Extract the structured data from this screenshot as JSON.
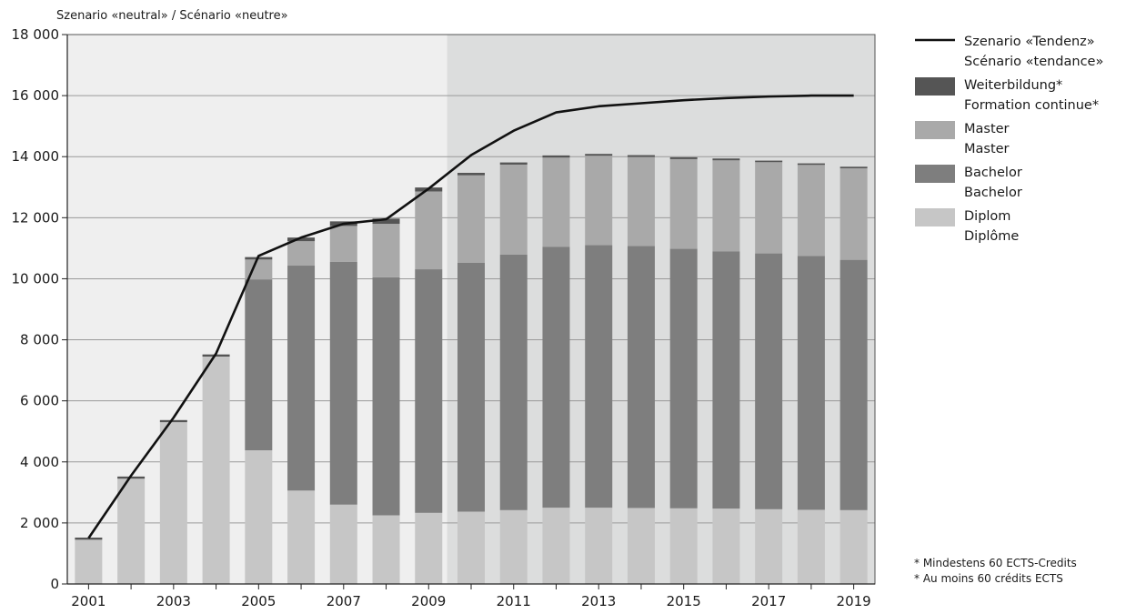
{
  "chart_data": {
    "type": "bar",
    "title": "Szenario «neutral» / Scénario «neutre»",
    "categories": [
      "2001",
      "2002",
      "2003",
      "2004",
      "2005",
      "2006",
      "2007",
      "2008",
      "2009",
      "2010",
      "2011",
      "2012",
      "2013",
      "2014",
      "2015",
      "2016",
      "2017",
      "2018",
      "2019"
    ],
    "x_tick_labels": [
      "2001",
      "2003",
      "2005",
      "2007",
      "2009",
      "2011",
      "2013",
      "2015",
      "2017",
      "2019"
    ],
    "ylim": [
      0,
      18000
    ],
    "y_ticks": [
      0,
      2000,
      4000,
      6000,
      8000,
      10000,
      12000,
      14000,
      16000,
      18000
    ],
    "y_tick_labels": [
      "0",
      "2 000",
      "4 000",
      "6 000",
      "8 000",
      "10 000",
      "12 000",
      "14 000",
      "16 000",
      "18 000"
    ],
    "grid": true,
    "legend_position": "right",
    "shaded_region": {
      "from_category": "2010",
      "to_category": "2019",
      "color": "#dcdddd"
    },
    "stacked": true,
    "series": [
      {
        "name_de": "Diplom",
        "name_fr": "Diplôme",
        "color": "#c6c6c6",
        "values": [
          1450,
          3450,
          5300,
          7450,
          4380,
          3060,
          2600,
          2250,
          2330,
          2370,
          2420,
          2500,
          2500,
          2490,
          2480,
          2470,
          2450,
          2430,
          2420
        ]
      },
      {
        "name_de": "Bachelor",
        "name_fr": "Bachelor",
        "color": "#7e7e7e",
        "values": [
          0,
          0,
          0,
          0,
          5600,
          7370,
          7950,
          7800,
          7980,
          8150,
          8370,
          8550,
          8600,
          8580,
          8500,
          8430,
          8380,
          8320,
          8200
        ]
      },
      {
        "name_de": "Master",
        "name_fr": "Master",
        "color": "#a9a9a9",
        "values": [
          0,
          0,
          0,
          0,
          650,
          800,
          1180,
          1750,
          2550,
          2870,
          2950,
          2920,
          2930,
          2920,
          2940,
          2980,
          2990,
          2980,
          3000
        ]
      },
      {
        "name_de": "Weiterbildung*",
        "name_fr": "Formation continue*",
        "color": "#555555",
        "values": [
          70,
          70,
          70,
          70,
          80,
          120,
          150,
          170,
          130,
          80,
          70,
          70,
          60,
          60,
          60,
          60,
          50,
          50,
          50
        ]
      }
    ],
    "line_series": {
      "name_de": "Szenario «Tendenz»",
      "name_fr": "Scénario «tendance»",
      "color": "#111111",
      "values": [
        1500,
        3550,
        5450,
        7550,
        10750,
        11350,
        11800,
        11950,
        12950,
        14050,
        14850,
        15450,
        15650,
        15750,
        15850,
        15920,
        15970,
        16000,
        16000
      ]
    },
    "footnotes": [
      "* Mindestens 60 ECTS-Credits",
      "* Au moins 60 crédits ECTS"
    ]
  }
}
